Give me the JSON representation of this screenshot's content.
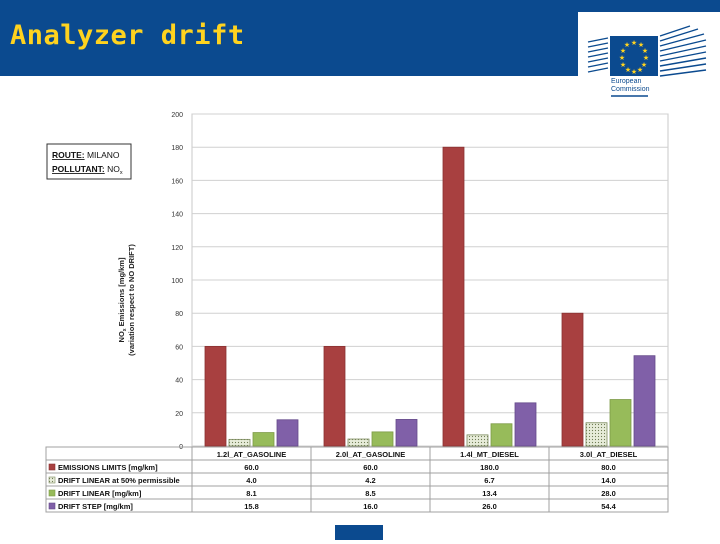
{
  "header": {
    "title": "Analyzer drift",
    "logo": {
      "line1": "European",
      "line2": "Commission"
    }
  },
  "legend_box": {
    "route_label": "ROUTE:",
    "route_value": "MILANO",
    "pollutant_label": "POLLUTANT:",
    "pollutant_value": "NO",
    "pollutant_sub": "x"
  },
  "colors": {
    "header_bg": "#0b4a8f",
    "title": "#ffd31f",
    "emissions_limits": "#a84040",
    "drift_linear_50": "#e7ecd9",
    "drift_linear": "#97bb5a",
    "drift_step": "#8060a8"
  },
  "chart_data": {
    "type": "bar",
    "ylabel_line1": "NO",
    "ylabel_sub": "x",
    "ylabel_rest": " Emissions [mg/km]",
    "ylabel_line2": "(variation respect to NO DRIFT)",
    "ylim": [
      0,
      200
    ],
    "yticks": [
      "0",
      "20",
      "40",
      "60",
      "80",
      "100",
      "120",
      "140",
      "160",
      "180",
      "200"
    ],
    "grid": true,
    "categories": [
      "1.2l_AT_GASOLINE",
      "2.0l_AT_GASOLINE",
      "1.4l_MT_DIESEL",
      "3.0l_AT_DIESEL"
    ],
    "series": [
      {
        "name": "EMISSIONS LIMITS [mg/km]",
        "values": [
          60.0,
          60.0,
          180.0,
          80.0
        ],
        "labels": [
          "60.0",
          "60.0",
          "180.0",
          "80.0"
        ]
      },
      {
        "name": "DRIFT LINEAR at 50% permissible",
        "values": [
          4.0,
          4.2,
          6.7,
          14.0
        ],
        "labels": [
          "4.0",
          "4.2",
          "6.7",
          "14.0"
        ]
      },
      {
        "name": "DRIFT LINEAR [mg/km]",
        "values": [
          8.1,
          8.5,
          13.4,
          28.0
        ],
        "labels": [
          "8.1",
          "8.5",
          "13.4",
          "28.0"
        ]
      },
      {
        "name": "DRIFT STEP [mg/km]",
        "values": [
          15.8,
          16.0,
          26.0,
          54.4
        ],
        "labels": [
          "15.8",
          "16.0",
          "26.0",
          "54.4"
        ]
      }
    ]
  }
}
